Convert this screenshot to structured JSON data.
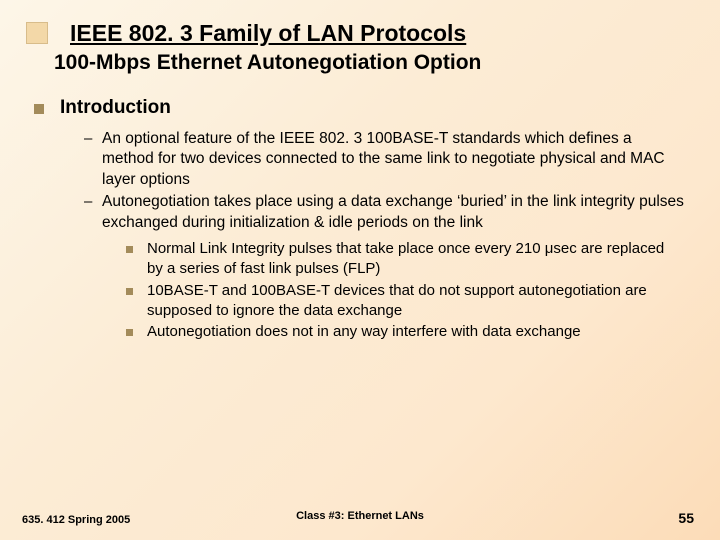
{
  "colors": {
    "bg_gradient_start": "#fdf6e8",
    "bg_gradient_end": "#fcdcb8",
    "accent_box_fill": "#f3d8a8",
    "accent_box_border": "#d8bc8a",
    "bullet_color": "#a38b5a",
    "text_color": "#000000"
  },
  "typography": {
    "family": "Verdana",
    "title_size_pt": 17,
    "subtitle_size_pt": 16,
    "section_size_pt": 14,
    "body_size_pt": 12,
    "footer_size_pt": 8
  },
  "title": "IEEE 802. 3 Family of LAN Protocols",
  "subtitle": "100-Mbps Ethernet Autonegotiation Option",
  "section_heading": "Introduction",
  "sub_items": [
    "An optional feature of the IEEE 802. 3 100BASE-T standards which defines a method for two devices connected to the same link to negotiate physical and MAC layer options",
    "Autonegotiation takes place using a data exchange ‘buried’ in the link integrity pulses exchanged during initialization & idle periods on the link"
  ],
  "subsub_items": [
    "Normal Link Integrity pulses that take place once every 210 μsec are replaced by a series of fast link pulses (FLP)",
    "10BASE-T and 100BASE-T devices that do not support autonegotiation are supposed to ignore the data exchange",
    "Autonegotiation does not in any way interfere with data exchange"
  ],
  "footer": {
    "left": "635. 412 Spring 2005",
    "center": "Class #3:  Ethernet LANs",
    "page": "55"
  }
}
